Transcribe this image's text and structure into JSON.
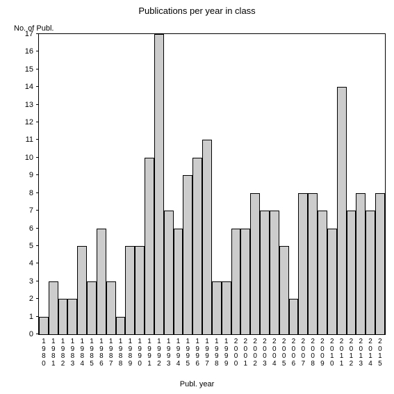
{
  "chart": {
    "type": "bar",
    "title": "Publications per year in class",
    "title_fontsize": 13,
    "y_axis_title": "No. of Publ.",
    "x_axis_title": "Publ. year",
    "label_fontsize": 11,
    "background_color": "#ffffff",
    "bar_fill_color": "#cccccc",
    "bar_border_color": "#000000",
    "axis_color": "#000000",
    "text_color": "#000000",
    "ylim": [
      0,
      17
    ],
    "ytick_step": 1,
    "categories": [
      "1980",
      "1981",
      "1982",
      "1983",
      "1984",
      "1985",
      "1986",
      "1987",
      "1988",
      "1989",
      "1990",
      "1991",
      "1992",
      "1993",
      "1994",
      "1995",
      "1996",
      "1997",
      "1998",
      "1999",
      "2000",
      "2001",
      "2002",
      "2003",
      "2004",
      "2005",
      "2006",
      "2007",
      "2008",
      "2009",
      "2010",
      "2011",
      "2012",
      "2013",
      "2014",
      "2015"
    ],
    "values": [
      1,
      3,
      2,
      2,
      5,
      3,
      6,
      3,
      1,
      5,
      5,
      10,
      17,
      7,
      6,
      9,
      10,
      11,
      3,
      3,
      6,
      6,
      8,
      7,
      7,
      5,
      2,
      8,
      8,
      7,
      6,
      14,
      7,
      8,
      7,
      8
    ]
  }
}
